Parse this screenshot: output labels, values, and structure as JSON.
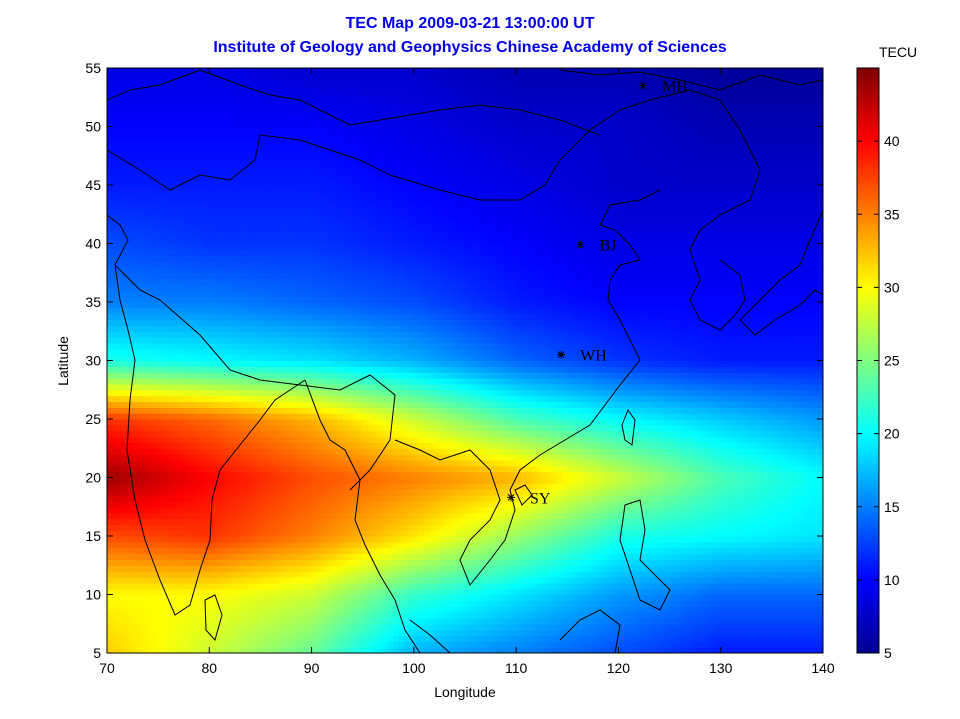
{
  "chart_data": {
    "type": "heatmap",
    "title": "TEC Map 2009-03-21 13:00:00 UT",
    "subtitle": "Institute of Geology and Geophysics Chinese Academy of Sciences",
    "xlabel": "Longitude",
    "ylabel": "Latitude",
    "xlim": [
      70,
      140
    ],
    "ylim": [
      5,
      55
    ],
    "xticks": [
      70,
      80,
      90,
      100,
      110,
      120,
      130,
      140
    ],
    "yticks": [
      5,
      10,
      15,
      20,
      25,
      30,
      35,
      40,
      45,
      50,
      55
    ],
    "colorbar": {
      "label": "TECU",
      "range": [
        5,
        45
      ],
      "ticks": [
        5,
        10,
        15,
        20,
        25,
        30,
        35,
        40
      ],
      "colormap": "jet"
    },
    "lon": [
      70,
      80,
      90,
      100,
      110,
      120,
      130,
      140
    ],
    "lat": [
      55,
      50,
      45,
      40,
      35,
      30,
      25,
      20,
      15,
      10,
      5
    ],
    "tec": [
      [
        9,
        9,
        8,
        8,
        7,
        7,
        6,
        6
      ],
      [
        10,
        10,
        10,
        9,
        8,
        8,
        7,
        7
      ],
      [
        11,
        11,
        11,
        10,
        9,
        8,
        8,
        8
      ],
      [
        13,
        12,
        12,
        11,
        10,
        9,
        9,
        9
      ],
      [
        15,
        15,
        14,
        13,
        11,
        10,
        10,
        10
      ],
      [
        21,
        20,
        19,
        17,
        14,
        12,
        11,
        11
      ],
      [
        38,
        36,
        33,
        28,
        23,
        20,
        18,
        16
      ],
      [
        44,
        40,
        37,
        35,
        33,
        28,
        23,
        20
      ],
      [
        37,
        38,
        35,
        31,
        26,
        21,
        20,
        19
      ],
      [
        30,
        30,
        28,
        22,
        19,
        16,
        14,
        14
      ],
      [
        32,
        28,
        24,
        17,
        15,
        13,
        11,
        11
      ]
    ],
    "stations": [
      {
        "name": "MH",
        "lon": 122.4,
        "lat": 53.5
      },
      {
        "name": "BJ",
        "lon": 116.3,
        "lat": 39.9
      },
      {
        "name": "WH",
        "lon": 114.4,
        "lat": 30.5
      },
      {
        "name": "SY",
        "lon": 109.5,
        "lat": 18.3
      }
    ]
  }
}
